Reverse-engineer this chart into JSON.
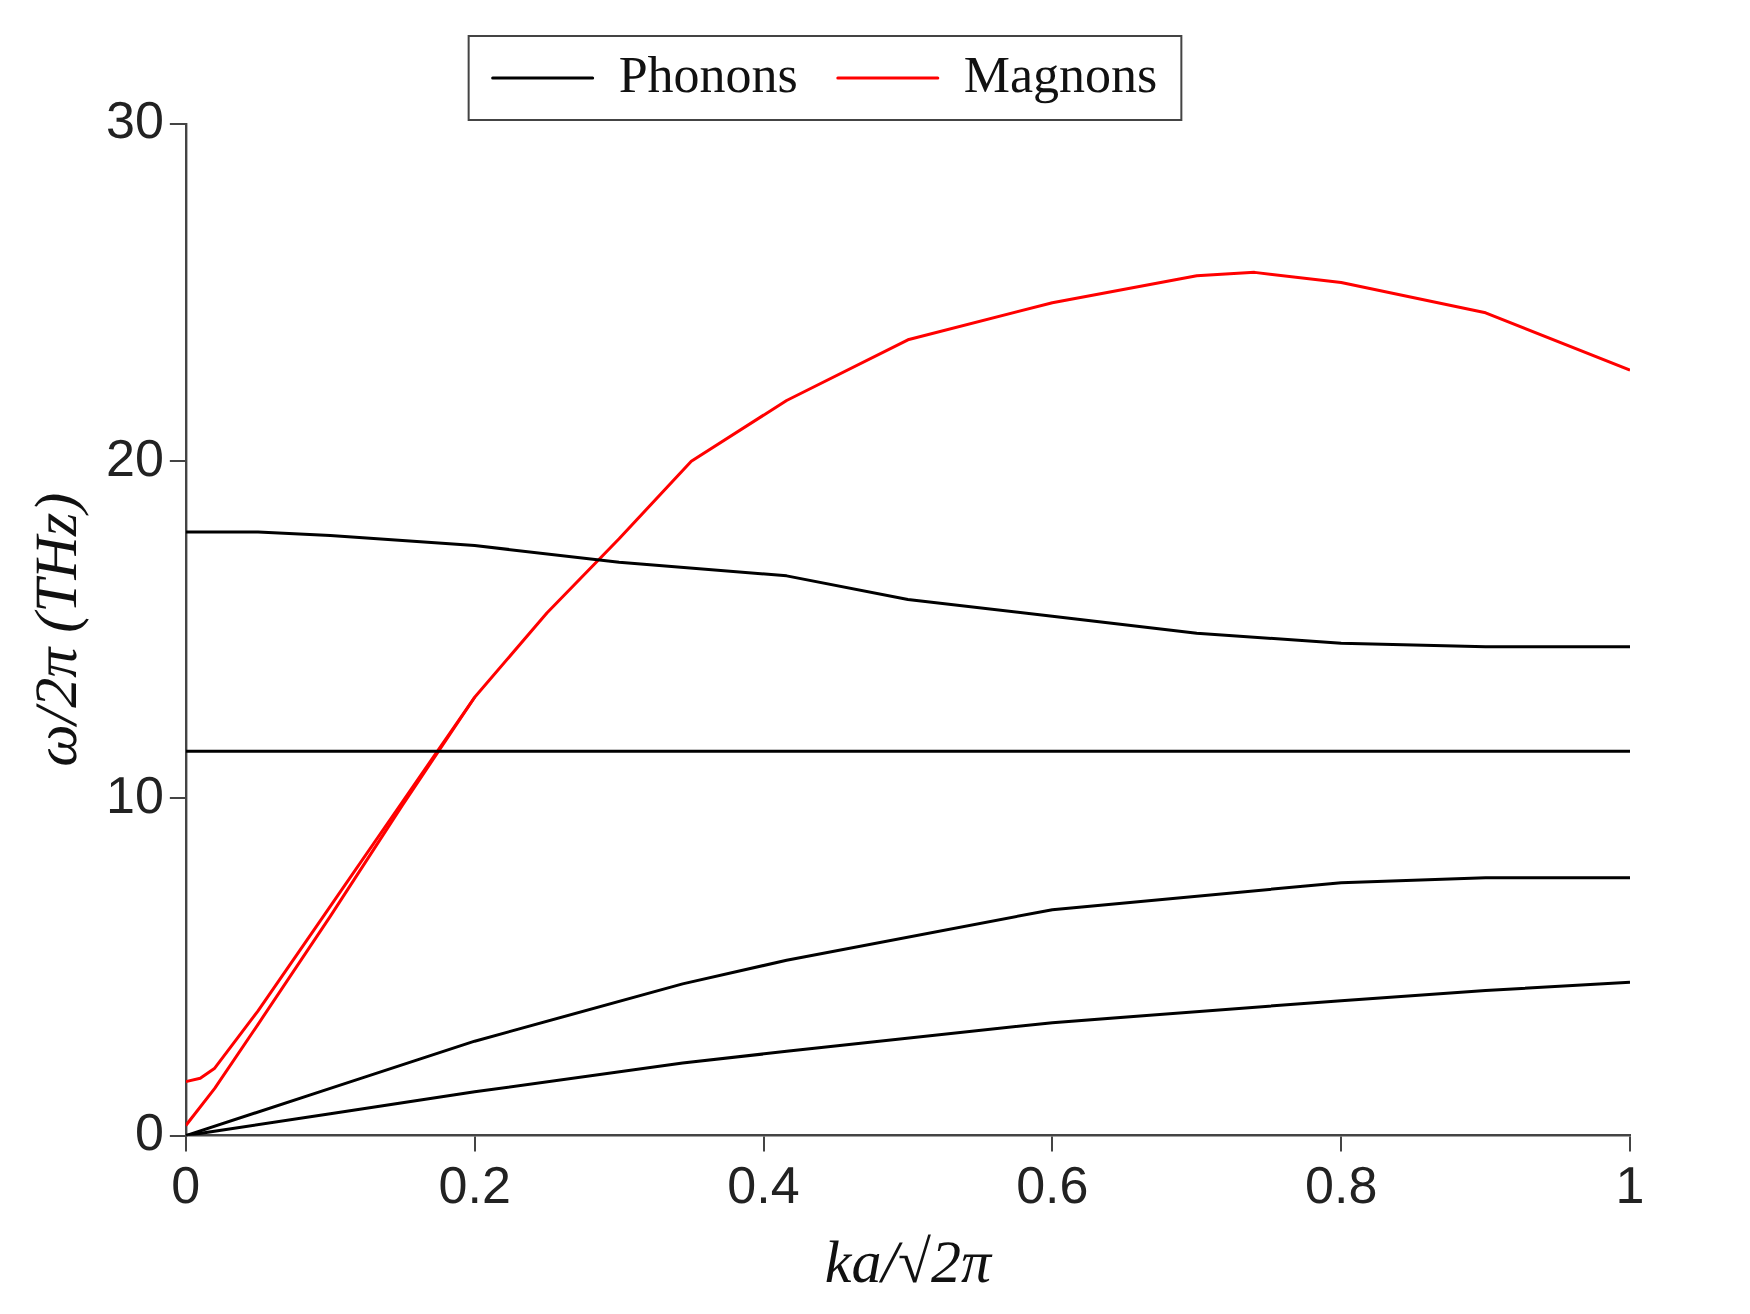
{
  "chart_data": {
    "type": "line",
    "xlabel": "ka/√2π",
    "ylabel": "ω/2π (THz)",
    "xlim": [
      0,
      1
    ],
    "ylim": [
      0,
      30
    ],
    "xticks": [
      0,
      0.2,
      0.4,
      0.6,
      0.8,
      1
    ],
    "yticks": [
      0,
      10,
      20,
      30
    ],
    "grid": false,
    "legend": "top",
    "marker": "none",
    "line_style": "solid",
    "series": [
      {
        "name": "Phonons",
        "color": "#000000",
        "x": [
          0,
          0.1,
          0.2,
          0.344,
          0.416,
          0.6,
          0.8,
          0.9,
          1
        ],
        "values": [
          0,
          0.65,
          1.3,
          2.15,
          2.5,
          3.35,
          4.0,
          4.3,
          4.55
        ]
      },
      {
        "color": "#000000",
        "x": [
          0,
          0.1,
          0.2,
          0.344,
          0.416,
          0.6,
          0.8,
          0.9,
          1
        ],
        "values": [
          0,
          1.4,
          2.8,
          4.5,
          5.2,
          6.7,
          7.5,
          7.65,
          7.65
        ]
      },
      {
        "color": "#000000",
        "x": [
          0,
          0.5,
          1
        ],
        "values": [
          11.4,
          11.4,
          11.4
        ]
      },
      {
        "color": "#000000",
        "x": [
          0,
          0.05,
          0.1,
          0.2,
          0.3,
          0.416,
          0.5,
          0.6,
          0.7,
          0.8,
          0.9,
          1
        ],
        "values": [
          17.9,
          17.9,
          17.8,
          17.5,
          17.0,
          16.6,
          15.9,
          15.4,
          14.9,
          14.6,
          14.5,
          14.5
        ]
      },
      {
        "name": "Magnons",
        "color": "#ff0000",
        "x": [
          0,
          0.01,
          0.02,
          0.05,
          0.1,
          0.15,
          0.2,
          0.25,
          0.3,
          0.35,
          0.416,
          0.5,
          0.6,
          0.7,
          0.74,
          0.8,
          0.9,
          1
        ],
        "values": [
          1.6,
          1.7,
          2.0,
          3.7,
          6.8,
          9.9,
          13.0,
          15.5,
          17.7,
          20.0,
          21.8,
          23.6,
          24.7,
          25.5,
          25.6,
          25.3,
          24.4,
          22.7
        ]
      },
      {
        "color": "#ff0000",
        "x": [
          0,
          0.02,
          0.05,
          0.1,
          0.15,
          0.2
        ],
        "values": [
          0.3,
          1.4,
          3.3,
          6.5,
          9.8,
          13.0
        ]
      }
    ]
  }
}
